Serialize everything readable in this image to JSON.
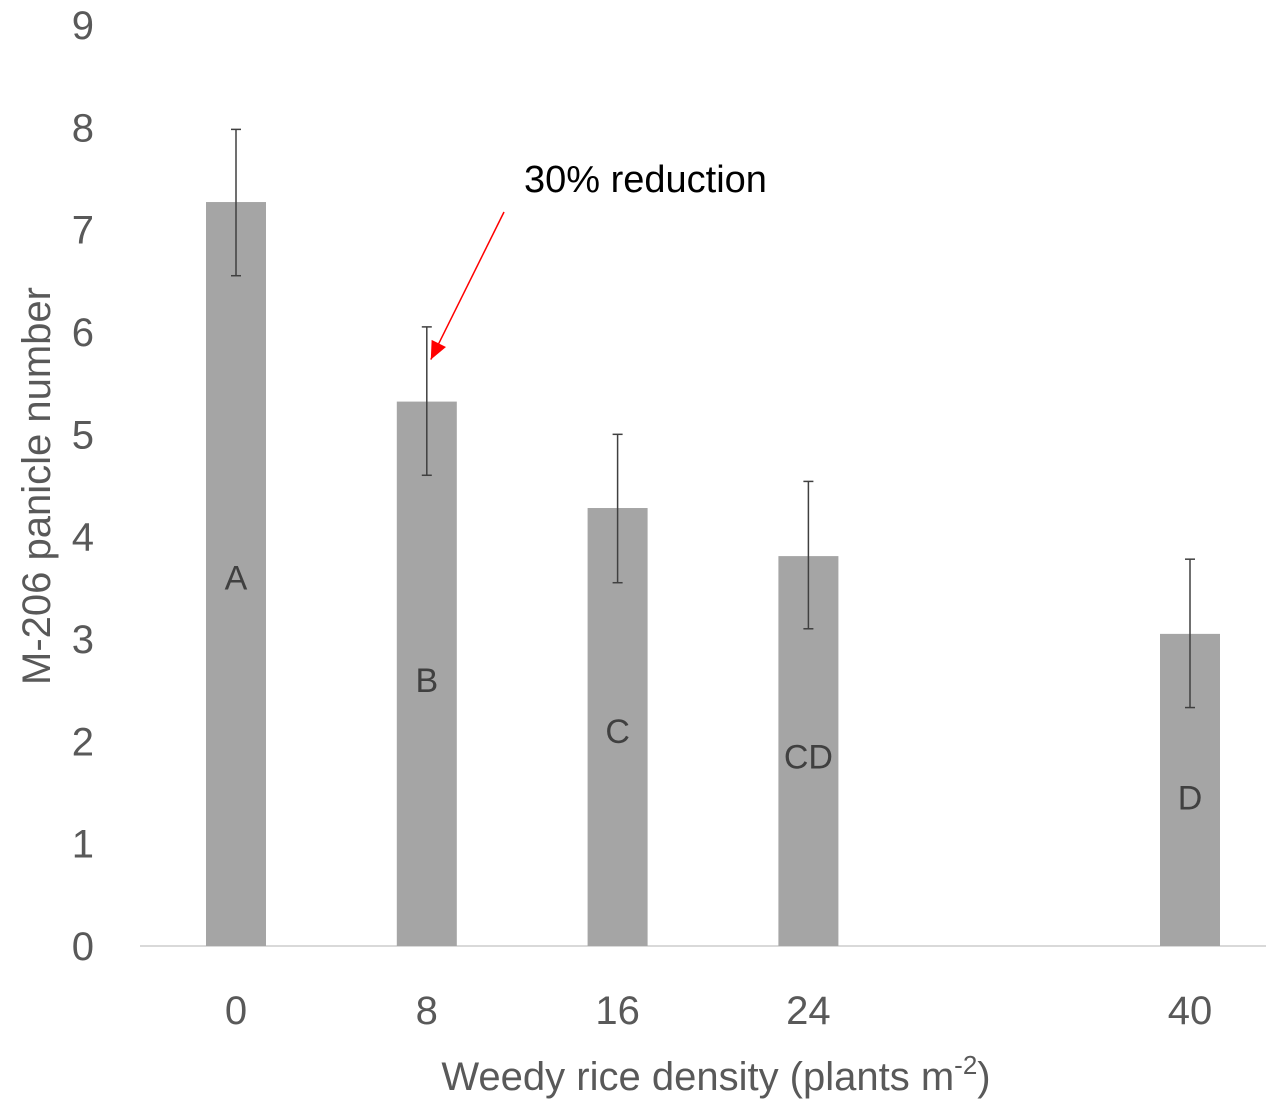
{
  "chart_data": {
    "type": "bar",
    "xlabel": "Weedy rice density (plants m",
    "xlabel_superscript": "-2",
    "xlabel_close": ")",
    "ylabel": "M-206 panicle number",
    "ylim": [
      0,
      9
    ],
    "yticks": [
      "0",
      "1",
      "2",
      "3",
      "4",
      "5",
      "6",
      "7",
      "8",
      "9"
    ],
    "x_axis_scale": "linear",
    "x": [
      0,
      8,
      16,
      24,
      40
    ],
    "categories": [
      "0",
      "8",
      "16",
      "24",
      "40"
    ],
    "values": [
      7.27,
      5.32,
      4.28,
      3.81,
      3.05
    ],
    "error_low": [
      6.55,
      4.6,
      3.55,
      3.1,
      2.33
    ],
    "error_high": [
      7.98,
      6.05,
      5.0,
      4.54,
      3.78
    ],
    "letters": [
      "A",
      "B",
      "C",
      "CD",
      "D"
    ],
    "letter_y": [
      3.6,
      2.6,
      2.1,
      1.85,
      1.45
    ],
    "bar_color": "#a5a5a5",
    "error_color": "#404040",
    "axis_color": "#d9d9d9",
    "grid": false,
    "legend": "none",
    "annotation": {
      "text": "30% reduction",
      "target_x": 8,
      "target_y": 5.75,
      "arrow_color": "#ff0000"
    }
  }
}
